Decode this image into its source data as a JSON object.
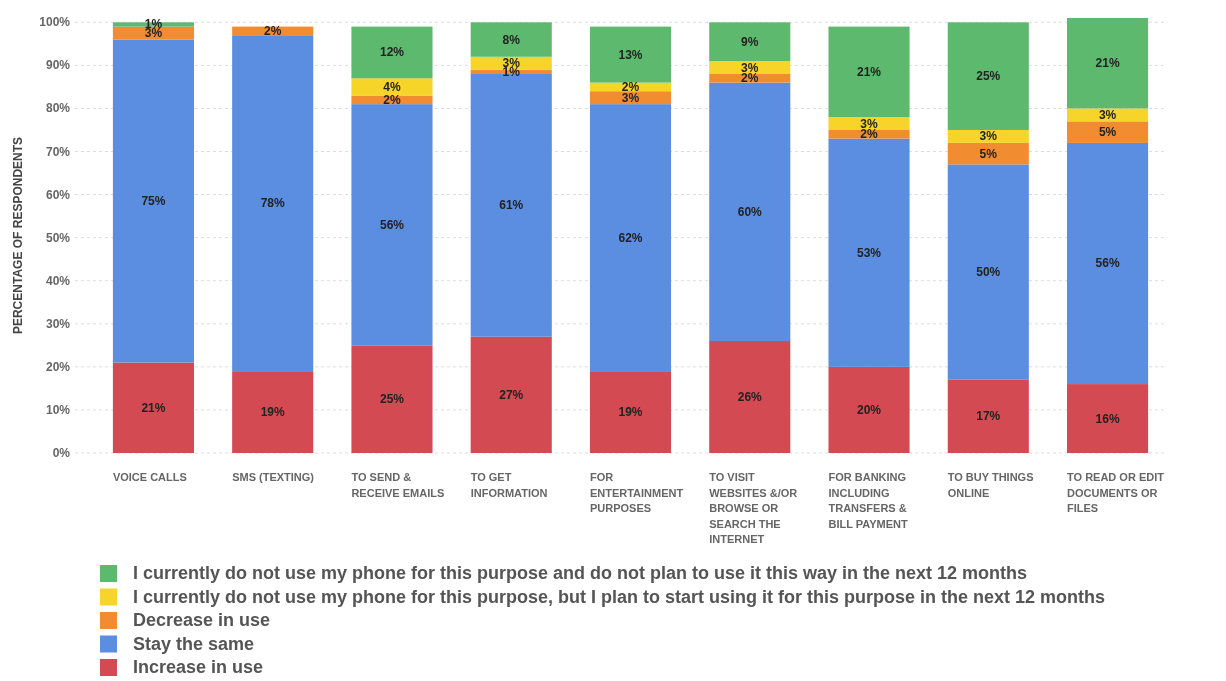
{
  "chart_data": {
    "type": "bar",
    "stacked": true,
    "ylabel": "PERCENTAGE OF RESPONDENTS",
    "categories": [
      "VOICE CALLS",
      "SMS (TEXTING)",
      "TO SEND & RECEIVE EMAILS",
      "TO GET INFORMATION",
      "FOR ENTERTAINMENT PURPOSES",
      "TO VISIT WEBSITES &/OR BROWSE OR SEARCH THE INTERNET",
      "FOR BANKING INCLUDING TRANSFERS & BILL PAYMENT",
      "TO BUY THINGS ONLINE",
      "TO READ OR EDIT DOCUMENTS OR FILES"
    ],
    "series": [
      {
        "name": "Increase in use",
        "color": "#d44a52",
        "values": [
          21,
          19,
          25,
          27,
          19,
          26,
          20,
          17,
          16
        ],
        "value_labels": [
          "21%",
          "19%",
          "25%",
          "27%",
          "19%",
          "26%",
          "20%",
          "17%",
          "16%"
        ]
      },
      {
        "name": "Stay the same",
        "color": "#5b8de0",
        "values": [
          75,
          78,
          56,
          61,
          62,
          60,
          53,
          50,
          56
        ],
        "value_labels": [
          "75%",
          "78%",
          "56%",
          "61%",
          "62%",
          "60%",
          "53%",
          "50%",
          "56%"
        ]
      },
      {
        "name": "Decrease in use",
        "color": "#f28c30",
        "values": [
          3,
          2,
          2,
          1,
          3,
          2,
          2,
          5,
          5
        ],
        "value_labels": [
          "3%",
          "2%",
          "2%",
          "1%",
          "3%",
          "2%",
          "2%",
          "5%",
          "5%"
        ]
      },
      {
        "name": "I currently do not use my phone for this purpose, but I plan to start using it for this purpose in the next 12 months",
        "color": "#f7d42a",
        "values": [
          null,
          null,
          4,
          3,
          2,
          3,
          3,
          3,
          3
        ],
        "value_labels": [
          null,
          null,
          "4%",
          "3%",
          "2%",
          "3%",
          "3%",
          "3%",
          "3%"
        ]
      },
      {
        "name": "I currently do not use my phone for this purpose and do not plan to use it this way in the next 12 months",
        "color": "#5db96e",
        "values": [
          1,
          null,
          12,
          8,
          13,
          9,
          21,
          25,
          21
        ],
        "value_labels": [
          "1%",
          null,
          "12%",
          "8%",
          "13%",
          "9%",
          "21%",
          "25%",
          "21%"
        ]
      }
    ],
    "ylim": [
      0,
      101
    ],
    "yticks": [
      {
        "value": 0,
        "label": "0%"
      },
      {
        "value": 10,
        "label": "10%"
      },
      {
        "value": 20,
        "label": "20%"
      },
      {
        "value": 30,
        "label": "30%"
      },
      {
        "value": 40,
        "label": "40%"
      },
      {
        "value": 50,
        "label": "50%"
      },
      {
        "value": 60,
        "label": "60%"
      },
      {
        "value": 70,
        "label": "70%"
      },
      {
        "value": 80,
        "label": "80%"
      },
      {
        "value": 90,
        "label": "90%"
      },
      {
        "value": 100,
        "label": "100%"
      }
    ],
    "grid": "y",
    "legend": "bottom"
  }
}
